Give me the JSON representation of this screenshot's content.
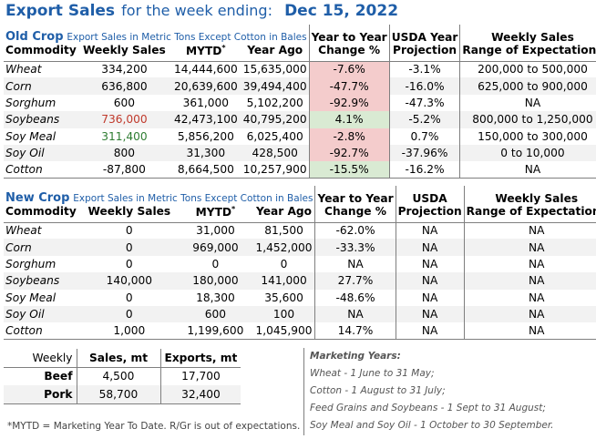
{
  "title": {
    "prefix": "Export Sales",
    "middle": "for the week ending:",
    "date": "Dec 15, 2022"
  },
  "old_crop": {
    "label": "Old Crop",
    "sublabel": "Export Sales in Metric Tons Except Cotton in Bales",
    "headers": {
      "change_top": "Year to Year",
      "change_bottom": "Change %",
      "usda_top": "USDA Year",
      "usda_bottom": "Projection",
      "range_top": "Weekly Sales",
      "range_bottom": "Range of Expectations",
      "commodity": "Commodity",
      "weekly": "Weekly Sales",
      "mytd": "MYTD",
      "mytd_mark": "*",
      "year_ago": "Year Ago"
    },
    "rows": [
      {
        "commodity": "Wheat",
        "weekly": "334,200",
        "mytd": "14,444,600",
        "year_ago": "15,635,000",
        "change": "-7.6%",
        "usda": "-3.1%",
        "range": "200,000 to 500,000"
      },
      {
        "commodity": "Corn",
        "weekly": "636,800",
        "mytd": "20,639,600",
        "year_ago": "39,494,400",
        "change": "-47.7%",
        "usda": "-16.0%",
        "range": "625,000 to 900,000"
      },
      {
        "commodity": "Sorghum",
        "weekly": "600",
        "mytd": "361,000",
        "year_ago": "5,102,200",
        "change": "-92.9%",
        "usda": "-47.3%",
        "range": "NA"
      },
      {
        "commodity": "Soybeans",
        "weekly": "736,000",
        "mytd": "42,473,100",
        "year_ago": "40,795,200",
        "change": "4.1%",
        "usda": "-5.2%",
        "range": "800,000 to 1,250,000"
      },
      {
        "commodity": "Soy Meal",
        "weekly": "311,400",
        "mytd": "5,856,200",
        "year_ago": "6,025,400",
        "change": "-2.8%",
        "usda": "0.7%",
        "range": "150,000 to 300,000"
      },
      {
        "commodity": "Soy Oil",
        "weekly": "800",
        "mytd": "31,300",
        "year_ago": "428,500",
        "change": "-92.7%",
        "usda": "-37.96%",
        "range": "0 to 10,000"
      },
      {
        "commodity": "Cotton",
        "weekly": "-87,800",
        "mytd": "8,664,500",
        "year_ago": "10,257,900",
        "change": "-15.5%",
        "usda": "-16.2%",
        "range": "NA"
      }
    ]
  },
  "new_crop": {
    "label": "New Crop",
    "sublabel": "Export Sales in Metric Tons Except Cotton in Bales",
    "headers": {
      "change_top": "Year to Year",
      "change_bottom": "Change %",
      "usda_top": "USDA",
      "usda_bottom": "Projection",
      "range_top": "Weekly Sales",
      "range_bottom": "Range of Expectations",
      "commodity": "Commodity",
      "weekly": "Weekly Sales",
      "mytd": "MYTD",
      "mytd_mark": "*",
      "year_ago": "Year Ago"
    },
    "rows": [
      {
        "commodity": "Wheat",
        "weekly": "0",
        "mytd": "31,000",
        "year_ago": "81,500",
        "change": "-62.0%",
        "usda": "NA",
        "range": "NA"
      },
      {
        "commodity": "Corn",
        "weekly": "0",
        "mytd": "969,000",
        "year_ago": "1,452,000",
        "change": "-33.3%",
        "usda": "NA",
        "range": "NA"
      },
      {
        "commodity": "Sorghum",
        "weekly": "0",
        "mytd": "0",
        "year_ago": "0",
        "change": "NA",
        "usda": "NA",
        "range": "NA"
      },
      {
        "commodity": "Soybeans",
        "weekly": "140,000",
        "mytd": "180,000",
        "year_ago": "141,000",
        "change": "27.7%",
        "usda": "NA",
        "range": "NA"
      },
      {
        "commodity": "Soy Meal",
        "weekly": "0",
        "mytd": "18,300",
        "year_ago": "35,600",
        "change": "-48.6%",
        "usda": "NA",
        "range": "NA"
      },
      {
        "commodity": "Soy Oil",
        "weekly": "0",
        "mytd": "600",
        "year_ago": "100",
        "change": "NA",
        "usda": "NA",
        "range": "NA"
      },
      {
        "commodity": "Cotton",
        "weekly": "1,000",
        "mytd": "1,199,600",
        "year_ago": "1,045,900",
        "change": "14.7%",
        "usda": "NA",
        "range": "NA"
      }
    ]
  },
  "meat": {
    "headers": {
      "label": "Weekly",
      "sales": "Sales, mt",
      "exports": "Exports, mt"
    },
    "rows": [
      {
        "label": "Beef",
        "sales": "4,500",
        "exports": "17,700"
      },
      {
        "label": "Pork",
        "sales": "58,700",
        "exports": "32,400"
      }
    ]
  },
  "footnote": "*MYTD = Marketing Year To Date. R/Gr is out of expectations.",
  "marketing_years": {
    "title": "Marketing Years:",
    "lines": [
      "Wheat - 1 June to 31 May;",
      "Cotton - 1 August to 31 July;",
      "Feed Grains and Soybeans - 1 Sept to 31 August;",
      "Soy Meal and Soy Oil - 1 October to 30 September."
    ]
  },
  "colors": {
    "title_blue": "#1f5ea8",
    "out_low_red": "#c0392b",
    "out_high_green": "#2e7d32",
    "change_red_fill": "#f4cccc",
    "change_green_fill": "#d9ead3",
    "alt_row": "#f2f2f2"
  }
}
